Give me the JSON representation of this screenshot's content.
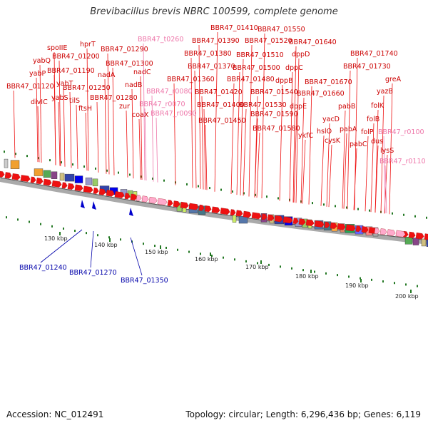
{
  "title": "Brevibacillus brevis NBRC 100599, complete genome",
  "accession": "Accession: NC_012491",
  "summary": "Topology: circular; Length: 6,296,436 bp; Genes: 6,119",
  "colors": {
    "gene_label": "#cc0000",
    "rna_label": "#ee77aa",
    "pseudo_label": "#0000aa",
    "gene": "#ee1111",
    "rna": "#ffaacc",
    "pseudo": "#0000cc",
    "tick": "#227722",
    "backbone": "#888888"
  },
  "ticks": [
    "130 kbp",
    "140 kbp",
    "150 kbp",
    "160 kbp",
    "170 kbp",
    "180 kbp",
    "190 kbp",
    "200 kbp"
  ],
  "gene_labels": [
    "spoIIE",
    "hprT",
    "yabQ",
    "BBR47_01200",
    "yabP",
    "BBR47_01190",
    "yabT",
    "BBR47_01120",
    "divIC",
    "yabS",
    "tilS",
    "ftsH",
    "BBR47_01250",
    "nadA",
    "BBR47_01290",
    "BBR47_01300",
    "nadC",
    "nadB",
    "BBR47_01280",
    "zur",
    "coaX",
    "BBR47_01410",
    "BBR47_01390",
    "BBR47_01380",
    "BBR47_01370",
    "BBR47_01360",
    "BBR47_01420",
    "BBR47_01400",
    "BBR47_01450",
    "BBR47_01550",
    "BBR47_01520",
    "BBR47_01510",
    "BBR47_01500",
    "BBR47_01480",
    "BBR47_01540",
    "BBR47_01530",
    "BBR47_01590",
    "BBR47_01580",
    "BBR47_01640",
    "dppD",
    "dppC",
    "dppB",
    "dppE",
    "BBR47_01670",
    "BBR47_01660",
    "ykfC",
    "yacD",
    "hslO",
    "cysK",
    "pabB",
    "pabA",
    "pabC",
    "BBR47_01740",
    "BBR47_01730",
    "greA",
    "yazB",
    "folK",
    "folB",
    "folP",
    "dus",
    "lysS"
  ],
  "rna_labels": [
    "BBR47_t0260",
    "BBR47_r0080",
    "BBR47_r0070",
    "BBR47_r0090",
    "BBR47_r0100",
    "BBR47_r0110"
  ],
  "pseudo_labels": [
    "BBR47_01240",
    "BBR47_01270",
    "BBR47_01350"
  ]
}
